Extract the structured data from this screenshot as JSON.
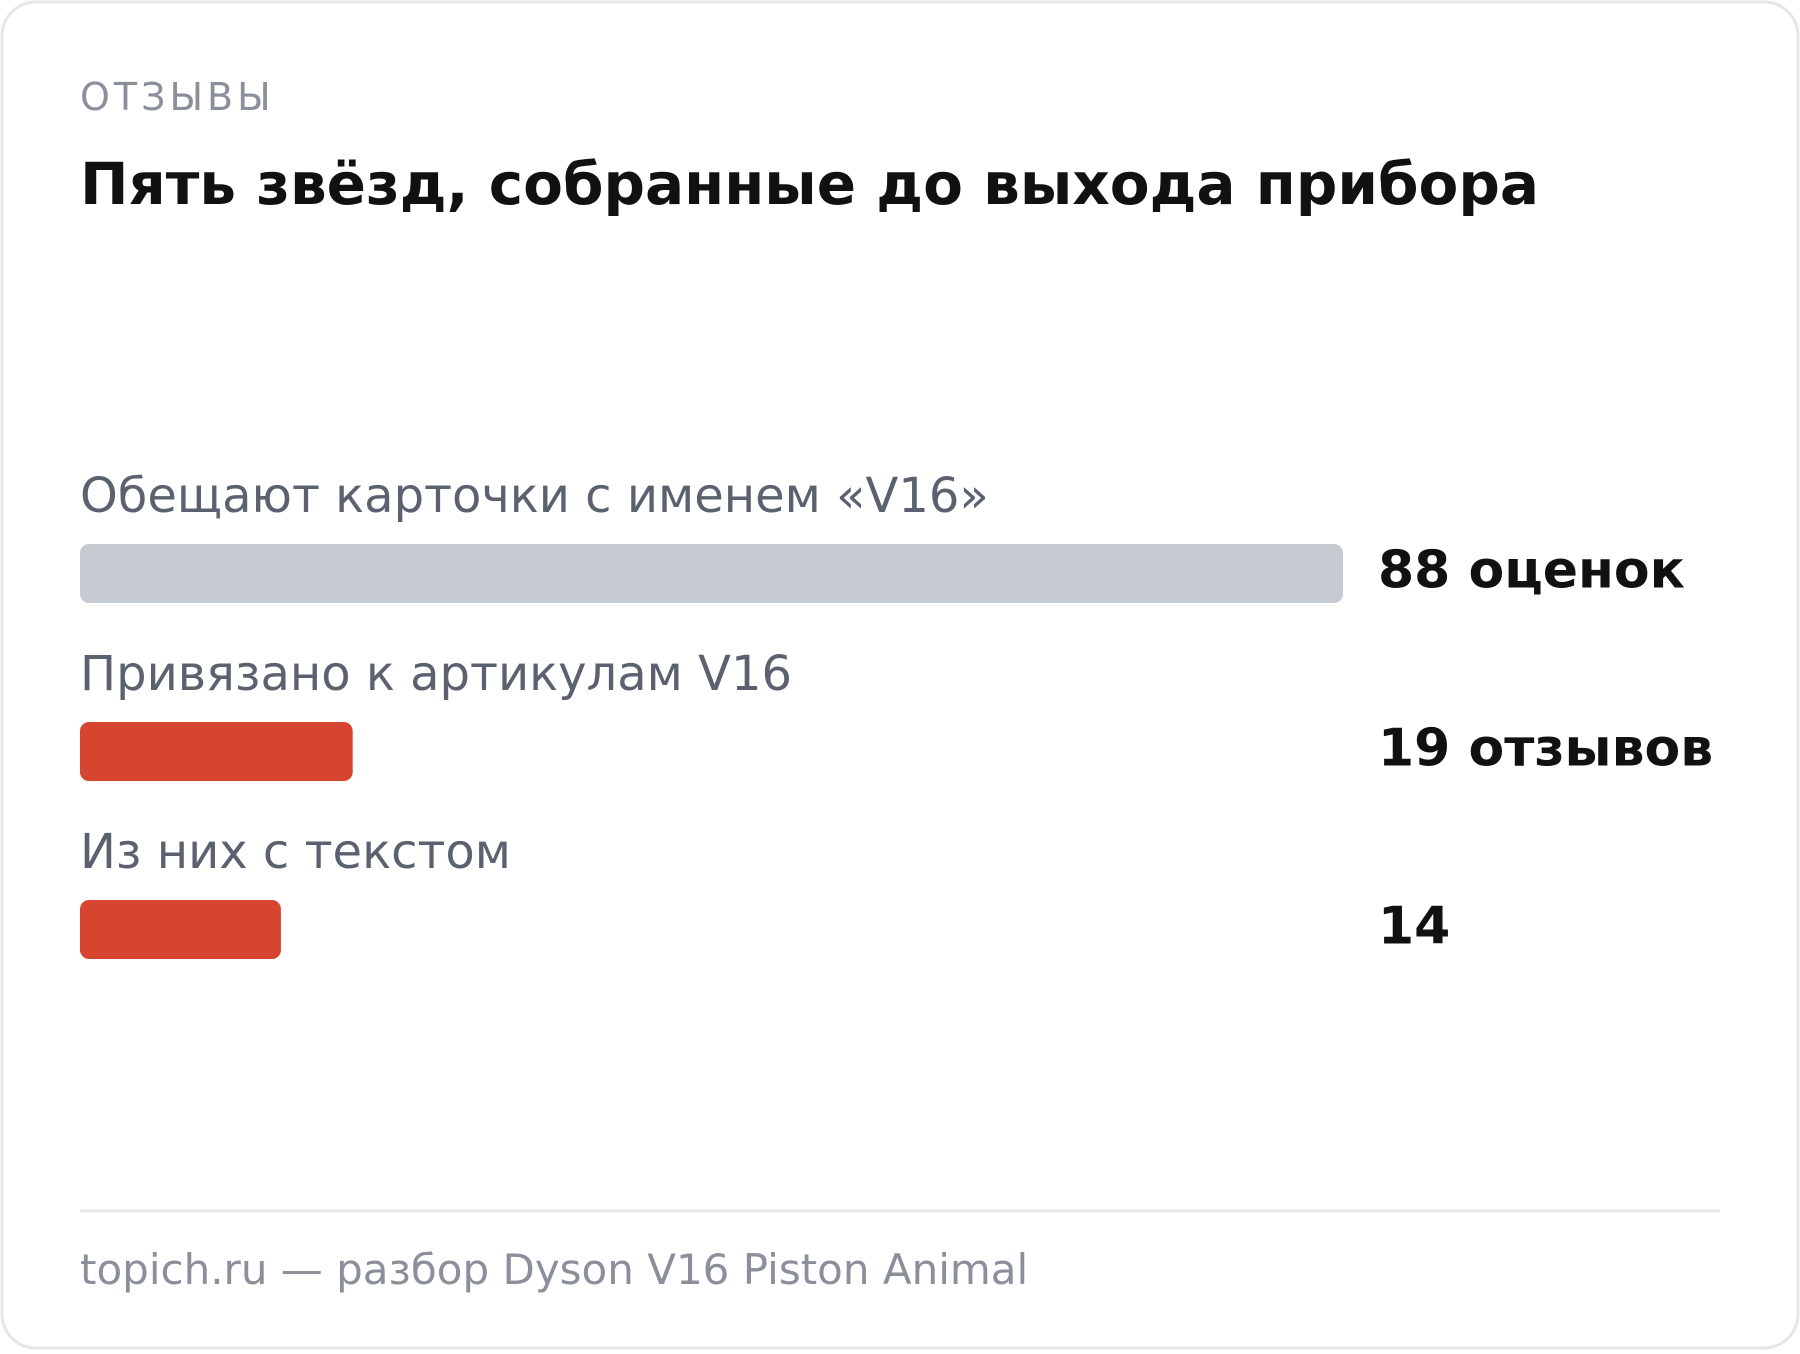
{
  "eyebrow": "ОТЗЫВЫ",
  "footer": "topich.ru — разбор Dyson V16 Piston Animal",
  "chart_data": {
    "type": "bar",
    "orientation": "horizontal",
    "title": "Пять звёзд, собранные до выхода прибора",
    "categories": [
      "Обещают карточки с именем «V16»",
      "Привязано к артикулам V16",
      "Из них с текстом"
    ],
    "values": [
      88,
      19,
      14
    ],
    "value_labels": [
      "88 оценок",
      "19 отзывов",
      "14"
    ],
    "colors": [
      "#c6cad1",
      "#d6452f",
      "#d6452f"
    ],
    "xlim": [
      0,
      88
    ]
  }
}
